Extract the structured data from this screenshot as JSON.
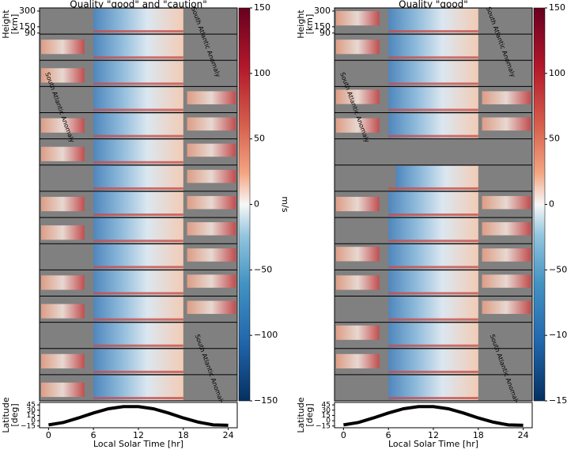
{
  "chart_data": [
    {
      "type": "heatmap",
      "title": "Quality \"good\" and \"caution\"",
      "ylabel": [
        "Height",
        "[km]"
      ],
      "ylim": [
        80,
        330
      ],
      "yticks": [
        300,
        150,
        90
      ],
      "xlim": [
        -1.2,
        25.2
      ],
      "clim": [
        -150,
        150
      ],
      "cticks": [
        150,
        100,
        50,
        0,
        {
          "value": -50,
          "label": "−50"
        },
        {
          "value": -100,
          "label": "−100"
        },
        {
          "value": -150,
          "label": "−150"
        }
      ],
      "colorbar_label": "m/s",
      "annotations": [
        "South Atlantic Anomaly",
        "South Atlantic Anomaly",
        "South Atlantic Anomaly"
      ]
    },
    {
      "type": "heatmap",
      "title": "Quality \"good\"",
      "ylabel": [
        "Height",
        "[km]"
      ],
      "ylim": [
        80,
        330
      ],
      "yticks": [
        300,
        150,
        90
      ],
      "xlim": [
        -1.2,
        25.2
      ],
      "clim": [
        -150,
        150
      ],
      "cticks": [
        150,
        100,
        50,
        0,
        {
          "value": -50,
          "label": "−50"
        },
        {
          "value": -100,
          "label": "−100"
        },
        {
          "value": -150,
          "label": "−150"
        }
      ],
      "colorbar_label": "m/s",
      "annotations": [
        "South Atlantic Anomaly",
        "South Atlantic Anomaly",
        "South Atlantic Anomaly"
      ]
    },
    {
      "type": "line",
      "xlabel": "Local Solar Time [hr]",
      "ylabel": [
        "Latitude",
        "[deg]"
      ],
      "xlim": [
        -1.2,
        25.2
      ],
      "ylim": [
        -20,
        52
      ],
      "xticks": [
        0,
        6,
        12,
        18,
        24
      ],
      "yticks": [
        45,
        30,
        15,
        0,
        {
          "value": -15,
          "label": "−15"
        }
      ],
      "color": "#000000",
      "x": [
        0,
        2,
        4,
        6,
        8,
        10,
        12,
        14,
        16,
        18,
        20,
        22,
        24
      ],
      "values": [
        -12,
        -5,
        8,
        22,
        34,
        40,
        40,
        34,
        22,
        8,
        -4,
        -12,
        -13
      ]
    },
    {
      "type": "line",
      "xlabel": "Local Solar Time [hr]",
      "ylabel": [
        "Latitude",
        "[deg]"
      ],
      "xlim": [
        -1.2,
        25.2
      ],
      "ylim": [
        -20,
        52
      ],
      "xticks": [
        0,
        6,
        12,
        18,
        24
      ],
      "yticks": [
        45,
        30,
        15,
        0,
        {
          "value": -15,
          "label": "−15"
        }
      ],
      "color": "#000000",
      "x": [
        0,
        2,
        4,
        6,
        8,
        10,
        12,
        14,
        16,
        18,
        20,
        22,
        24
      ],
      "values": [
        -12,
        -5,
        8,
        22,
        34,
        40,
        40,
        34,
        22,
        8,
        -4,
        -12,
        -13
      ]
    }
  ]
}
